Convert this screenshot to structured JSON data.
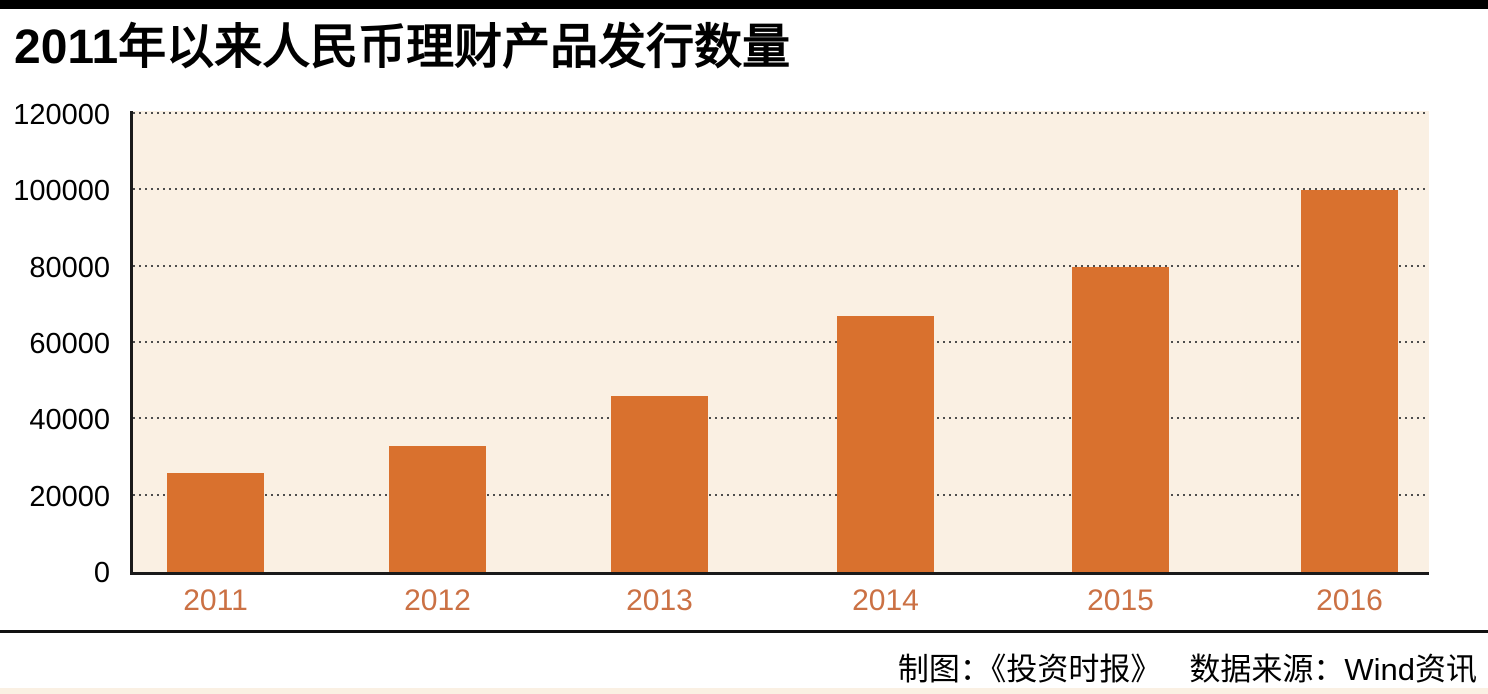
{
  "footer": {
    "credit": "制图：《投资时报》",
    "source": "数据来源：Wind资讯"
  },
  "chart_data": {
    "type": "bar",
    "title": "2011年以来人民币理财产品发行数量",
    "categories": [
      "2011",
      "2012",
      "2013",
      "2014",
      "2015",
      "2016"
    ],
    "values": [
      26000,
      33000,
      46000,
      67000,
      80000,
      100000
    ],
    "xlabel": "",
    "ylabel": "",
    "ylim": [
      0,
      120000
    ],
    "yticks": [
      0,
      20000,
      40000,
      60000,
      80000,
      100000,
      120000
    ],
    "grid": "horizontal-dotted",
    "legend": "none",
    "colors": {
      "bar": "#D9712E",
      "plot_background": "#FAF0E3",
      "year_label": "#CB7144",
      "axis": "#1A1A1A",
      "gridline": "#4D4D4D",
      "top_bar": "#000000",
      "bottom_strip": "#FAF0E3"
    }
  }
}
